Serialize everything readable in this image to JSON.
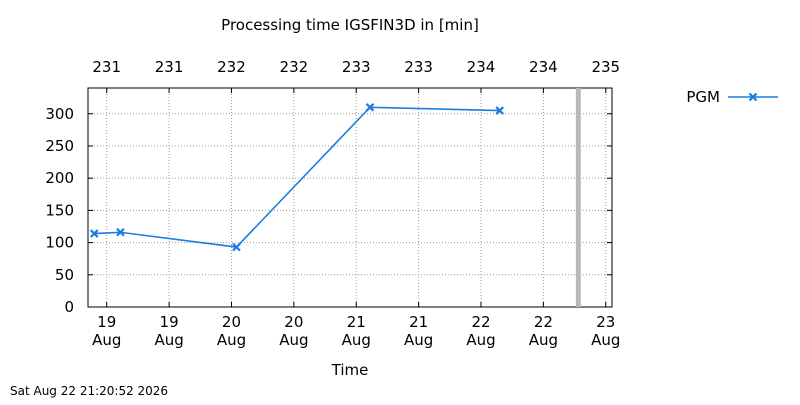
{
  "chart_data": {
    "type": "line",
    "title": "Processing time IGSFIN3D in [min]",
    "xlabel": "Time",
    "ylabel": "",
    "footer_timestamp": "Sat Aug 22 21:20:52 2026",
    "grid": true,
    "legend_position": "top-right",
    "xlim": [
      18.85,
      23.05
    ],
    "ylim": [
      0,
      340
    ],
    "x_ticks": [
      {
        "x": 19.0,
        "label1": "19",
        "label2": "Aug"
      },
      {
        "x": 19.5,
        "label1": "19",
        "label2": "Aug"
      },
      {
        "x": 20.0,
        "label1": "20",
        "label2": "Aug"
      },
      {
        "x": 20.5,
        "label1": "20",
        "label2": "Aug"
      },
      {
        "x": 21.0,
        "label1": "21",
        "label2": "Aug"
      },
      {
        "x": 21.5,
        "label1": "21",
        "label2": "Aug"
      },
      {
        "x": 22.0,
        "label1": "22",
        "label2": "Aug"
      },
      {
        "x": 22.5,
        "label1": "22",
        "label2": "Aug"
      },
      {
        "x": 23.0,
        "label1": "23",
        "label2": "Aug"
      }
    ],
    "top_ticks": [
      {
        "x": 19.0,
        "label": "231"
      },
      {
        "x": 19.5,
        "label": "231"
      },
      {
        "x": 20.0,
        "label": "232"
      },
      {
        "x": 20.5,
        "label": "232"
      },
      {
        "x": 21.0,
        "label": "233"
      },
      {
        "x": 21.5,
        "label": "233"
      },
      {
        "x": 22.0,
        "label": "234"
      },
      {
        "x": 22.5,
        "label": "234"
      },
      {
        "x": 23.0,
        "label": "235"
      }
    ],
    "y_ticks": [
      0,
      50,
      100,
      150,
      200,
      250,
      300
    ],
    "marker_line_x": 22.78,
    "colors": {
      "series": "#1a7de0",
      "marker_line": "#b8b8b8",
      "grid": "#9a9a9a"
    },
    "series": [
      {
        "name": "PGM",
        "marker": "x",
        "points": [
          {
            "x": 18.9,
            "y": 114
          },
          {
            "x": 19.11,
            "y": 116
          },
          {
            "x": 20.04,
            "y": 93
          },
          {
            "x": 21.11,
            "y": 310
          },
          {
            "x": 22.15,
            "y": 305
          }
        ]
      }
    ]
  }
}
